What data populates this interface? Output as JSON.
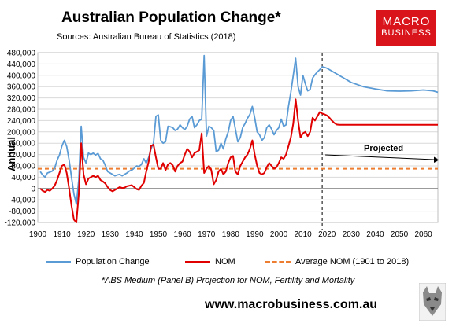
{
  "page": {
    "title": "Australian Population Change*",
    "sources": "Sources: Australian Bureau of Statistics (2018)",
    "logo_line1": "MACRO",
    "logo_line2": "BUSINESS",
    "footnote": "*ABS Medium (Panel B) Projection for NOM, Fertility and Mortality",
    "website": "www.macrobusiness.com.au"
  },
  "colors": {
    "population_change": "#5b9bd5",
    "nom": "#e00000",
    "average_nom": "#ed7d31",
    "logo_bg": "#d9141a"
  },
  "chart_data": {
    "type": "line",
    "title": "Australian Population Change*",
    "ylabel": "Annual",
    "xlim": [
      1900,
      2066
    ],
    "ylim": [
      -120000,
      480000
    ],
    "x_ticks": [
      1900,
      1910,
      1920,
      1930,
      1940,
      1950,
      1960,
      1970,
      1980,
      1990,
      2000,
      2010,
      2020,
      2030,
      2040,
      2050,
      2060
    ],
    "y_ticks": [
      -120000,
      -80000,
      -40000,
      0,
      40000,
      80000,
      120000,
      160000,
      200000,
      240000,
      280000,
      320000,
      360000,
      400000,
      440000,
      480000
    ],
    "y_tick_labels": [
      "-120,000",
      "-80,000",
      "-40,000",
      "0",
      "40,000",
      "80,000",
      "120,000",
      "160,000",
      "200,000",
      "240,000",
      "280,000",
      "320,000",
      "360,000",
      "400,000",
      "440,000",
      "480,000"
    ],
    "grid": true,
    "legend_position": "bottom",
    "projection_start_year": 2018,
    "annotation": "Projected",
    "series": [
      {
        "name": "Population Change",
        "x": [
          1901,
          1902,
          1903,
          1904,
          1905,
          1906,
          1907,
          1908,
          1909,
          1910,
          1911,
          1912,
          1913,
          1914,
          1915,
          1916,
          1917,
          1918,
          1919,
          1920,
          1921,
          1922,
          1923,
          1924,
          1925,
          1926,
          1927,
          1928,
          1929,
          1930,
          1931,
          1932,
          1933,
          1934,
          1935,
          1936,
          1937,
          1938,
          1939,
          1940,
          1941,
          1942,
          1943,
          1944,
          1945,
          1946,
          1947,
          1948,
          1949,
          1950,
          1951,
          1952,
          1953,
          1954,
          1955,
          1956,
          1957,
          1958,
          1959,
          1960,
          1961,
          1962,
          1963,
          1964,
          1965,
          1966,
          1967,
          1968,
          1969,
          1970,
          1971,
          1972,
          1973,
          1974,
          1975,
          1976,
          1977,
          1978,
          1979,
          1980,
          1981,
          1982,
          1983,
          1984,
          1985,
          1986,
          1987,
          1988,
          1989,
          1990,
          1991,
          1992,
          1993,
          1994,
          1995,
          1996,
          1997,
          1998,
          1999,
          2000,
          2001,
          2002,
          2003,
          2004,
          2005,
          2006,
          2007,
          2008,
          2009,
          2010,
          2011,
          2012,
          2013,
          2014,
          2015,
          2016,
          2017,
          2018,
          2019,
          2020,
          2021,
          2022,
          2023,
          2024,
          2025,
          2026,
          2027,
          2028,
          2030,
          2035,
          2040,
          2045,
          2050,
          2055,
          2060,
          2064,
          2066
        ],
        "values": [
          60000,
          48000,
          40000,
          55000,
          58000,
          62000,
          72000,
          100000,
          118000,
          150000,
          170000,
          148000,
          100000,
          40000,
          -20000,
          -55000,
          30000,
          220000,
          110000,
          90000,
          125000,
          120000,
          125000,
          118000,
          124000,
          105000,
          100000,
          82000,
          60000,
          55000,
          50000,
          45000,
          48000,
          50000,
          45000,
          50000,
          55000,
          62000,
          65000,
          72000,
          80000,
          78000,
          85000,
          105000,
          90000,
          110000,
          140000,
          160000,
          255000,
          260000,
          170000,
          160000,
          165000,
          220000,
          218000,
          215000,
          205000,
          210000,
          225000,
          215000,
          208000,
          220000,
          245000,
          255000,
          215000,
          225000,
          240000,
          245000,
          470000,
          185000,
          220000,
          215000,
          205000,
          130000,
          135000,
          160000,
          140000,
          175000,
          200000,
          240000,
          255000,
          210000,
          165000,
          180000,
          215000,
          230000,
          248000,
          262000,
          290000,
          250000,
          200000,
          190000,
          170000,
          180000,
          215000,
          225000,
          210000,
          190000,
          205000,
          215000,
          245000,
          220000,
          225000,
          290000,
          340000,
          400000,
          460000,
          360000,
          330000,
          400000,
          370000,
          345000,
          350000,
          390000,
          402000,
          412000,
          420000,
          430000,
          428000,
          425000,
          420000,
          415000,
          410000,
          405000,
          400000,
          395000,
          390000,
          385000,
          375000,
          360000,
          352000,
          345000,
          344000,
          345000,
          348000,
          345000,
          340000
        ]
      },
      {
        "name": "NOM",
        "x": [
          1901,
          1902,
          1903,
          1904,
          1905,
          1906,
          1907,
          1908,
          1909,
          1910,
          1911,
          1912,
          1913,
          1914,
          1915,
          1916,
          1917,
          1918,
          1919,
          1920,
          1921,
          1922,
          1923,
          1924,
          1925,
          1926,
          1927,
          1928,
          1929,
          1930,
          1931,
          1932,
          1933,
          1934,
          1935,
          1936,
          1937,
          1938,
          1939,
          1940,
          1941,
          1942,
          1943,
          1944,
          1945,
          1946,
          1947,
          1948,
          1949,
          1950,
          1951,
          1952,
          1953,
          1954,
          1955,
          1956,
          1957,
          1958,
          1959,
          1960,
          1961,
          1962,
          1963,
          1964,
          1965,
          1966,
          1967,
          1968,
          1969,
          1970,
          1971,
          1972,
          1973,
          1974,
          1975,
          1976,
          1977,
          1978,
          1979,
          1980,
          1981,
          1982,
          1983,
          1984,
          1985,
          1986,
          1987,
          1988,
          1989,
          1990,
          1991,
          1992,
          1993,
          1994,
          1995,
          1996,
          1997,
          1998,
          1999,
          2000,
          2001,
          2002,
          2003,
          2004,
          2005,
          2006,
          2007,
          2008,
          2009,
          2010,
          2011,
          2012,
          2013,
          2014,
          2015,
          2016,
          2017,
          2018,
          2019,
          2020,
          2021,
          2022,
          2023,
          2024,
          2025,
          2030,
          2040,
          2050,
          2066
        ],
        "values": [
          0,
          -8000,
          -12000,
          -5000,
          -8000,
          0,
          10000,
          30000,
          55000,
          80000,
          85000,
          55000,
          0,
          -60000,
          -110000,
          -120000,
          -20000,
          160000,
          50000,
          15000,
          35000,
          40000,
          45000,
          40000,
          45000,
          30000,
          25000,
          18000,
          5000,
          -5000,
          -10000,
          -5000,
          0,
          5000,
          2000,
          3000,
          8000,
          10000,
          12000,
          5000,
          -2000,
          -5000,
          10000,
          20000,
          60000,
          95000,
          150000,
          155000,
          110000,
          70000,
          70000,
          90000,
          65000,
          85000,
          90000,
          82000,
          60000,
          80000,
          90000,
          95000,
          120000,
          140000,
          130000,
          110000,
          125000,
          130000,
          135000,
          195000,
          55000,
          70000,
          80000,
          65000,
          15000,
          30000,
          60000,
          70000,
          50000,
          60000,
          90000,
          110000,
          115000,
          60000,
          50000,
          80000,
          95000,
          110000,
          120000,
          140000,
          170000,
          120000,
          80000,
          55000,
          50000,
          55000,
          75000,
          90000,
          80000,
          70000,
          75000,
          90000,
          110000,
          105000,
          120000,
          150000,
          180000,
          230000,
          315000,
          240000,
          180000,
          195000,
          200000,
          185000,
          200000,
          250000,
          240000,
          255000,
          270000,
          265000,
          262000,
          258000,
          250000,
          240000,
          232000,
          226000,
          225000,
          225000,
          225000,
          225000,
          225000
        ]
      },
      {
        "name": "Average NOM (1901 to 2018)",
        "x": [
          1900,
          2066
        ],
        "values": [
          70000,
          70000
        ]
      }
    ]
  }
}
